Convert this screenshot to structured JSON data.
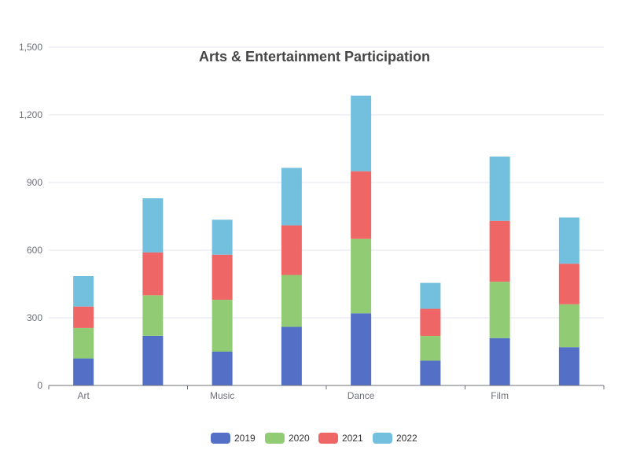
{
  "chart_data": {
    "type": "bar",
    "stacked": true,
    "title": "Arts & Entertainment Participation",
    "categories": [
      "Art",
      "",
      "Music",
      "",
      "Dance",
      "",
      "Film",
      ""
    ],
    "series": [
      {
        "name": "2019",
        "color": "#5470c6",
        "values": [
          120,
          220,
          150,
          260,
          320,
          110,
          210,
          170
        ]
      },
      {
        "name": "2020",
        "color": "#91cc75",
        "values": [
          135,
          180,
          230,
          230,
          330,
          110,
          250,
          190
        ]
      },
      {
        "name": "2021",
        "color": "#ee6666",
        "values": [
          95,
          190,
          200,
          220,
          300,
          120,
          270,
          180
        ]
      },
      {
        "name": "2022",
        "color": "#73c0de",
        "values": [
          135,
          240,
          155,
          255,
          335,
          115,
          285,
          205
        ]
      }
    ],
    "y_ticks": [
      "0",
      "300",
      "600",
      "900",
      "1,200",
      "1,500"
    ],
    "ylim": [
      0,
      1500
    ],
    "grid": true,
    "legend_position": "bottom"
  }
}
